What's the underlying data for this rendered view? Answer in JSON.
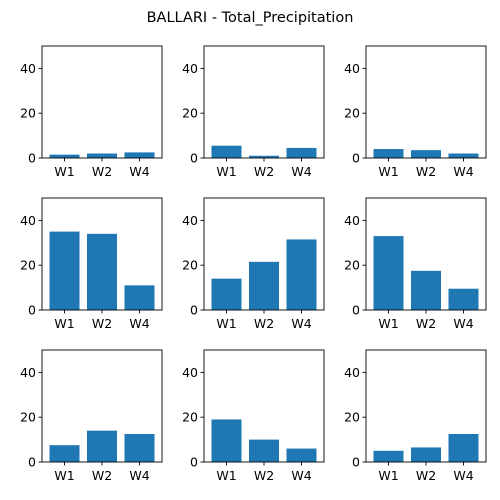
{
  "chart_data": {
    "type": "bar",
    "layout": "3x3 grid of subplots",
    "title": "BALLARI - Total_Precipitation",
    "categories": [
      "W1",
      "W2",
      "W4"
    ],
    "bar_color": "#1f77b4",
    "ylim": [
      0,
      50
    ],
    "yticks": [
      "0",
      "20",
      "40"
    ],
    "grid": false,
    "panels": [
      {
        "values": [
          1.5,
          2.0,
          2.5
        ]
      },
      {
        "values": [
          5.5,
          1.0,
          4.5
        ]
      },
      {
        "values": [
          4.0,
          3.5,
          2.0
        ]
      },
      {
        "values": [
          35.0,
          34.0,
          11.0
        ]
      },
      {
        "values": [
          14.0,
          21.5,
          31.5
        ]
      },
      {
        "values": [
          33.0,
          17.5,
          9.5
        ]
      },
      {
        "values": [
          7.5,
          14.0,
          12.5
        ]
      },
      {
        "values": [
          19.0,
          10.0,
          6.0
        ]
      },
      {
        "values": [
          5.0,
          6.5,
          12.5
        ]
      }
    ]
  }
}
